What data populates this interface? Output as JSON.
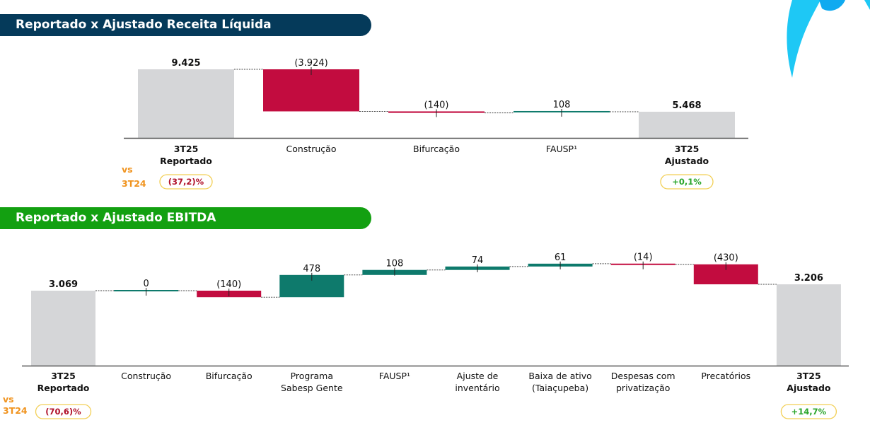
{
  "colors": {
    "navy": "#053a5a",
    "green_banner": "#13a011",
    "total": "#d5d6d8",
    "negative": "#c20c3f",
    "positive": "#0e7a6c",
    "vs_orange": "#f0931e",
    "badge_border": "#f2cf55",
    "badge_negative_text": "#b0112a",
    "badge_positive_text": "#2aa52a"
  },
  "chart_data": [
    {
      "type": "waterfall",
      "title": "Reportado x Ajustado Receita Líquida",
      "ylim": [
        3025,
        9425
      ],
      "categories": [
        {
          "lines": [
            "3T25",
            "Reportado"
          ],
          "bold": true
        },
        {
          "lines": [
            "Construção"
          ],
          "bold": false
        },
        {
          "lines": [
            "Bifurcação"
          ],
          "bold": false
        },
        {
          "lines": [
            "FAUSP¹"
          ],
          "bold": false
        },
        {
          "lines": [
            "3T25",
            "Ajustado"
          ],
          "bold": true
        }
      ],
      "values": [
        9425,
        -3924,
        -140,
        108,
        5468
      ],
      "kinds": [
        "total",
        "delta",
        "delta",
        "delta",
        "total"
      ],
      "labels": [
        "9.425",
        "(3.924)",
        "(140)",
        "108",
        "5.468"
      ],
      "vs_label": [
        "vs",
        "3T24"
      ],
      "badges": [
        {
          "index": 0,
          "text": "(37,2)%",
          "sign": "negative"
        },
        {
          "index": 4,
          "text": "+0,1%",
          "sign": "positive"
        }
      ]
    },
    {
      "type": "waterfall",
      "title": "Reportado x Ajustado EBITDA",
      "ylim": [
        1456,
        3620
      ],
      "categories": [
        {
          "lines": [
            "3T25",
            "Reportado"
          ],
          "bold": true
        },
        {
          "lines": [
            "Construção"
          ],
          "bold": false
        },
        {
          "lines": [
            "Bifurcação"
          ],
          "bold": false
        },
        {
          "lines": [
            "Programa",
            "Sabesp Gente"
          ],
          "bold": false
        },
        {
          "lines": [
            "FAUSP¹"
          ],
          "bold": false
        },
        {
          "lines": [
            "Ajuste de",
            "inventário"
          ],
          "bold": false
        },
        {
          "lines": [
            "Baixa de ativo",
            "(Taiaçupeba)"
          ],
          "bold": false
        },
        {
          "lines": [
            "Despesas com",
            "privatização"
          ],
          "bold": false
        },
        {
          "lines": [
            "Precatórios"
          ],
          "bold": false
        },
        {
          "lines": [
            "3T25",
            "Ajustado"
          ],
          "bold": true
        }
      ],
      "values": [
        3069,
        0,
        -140,
        478,
        108,
        74,
        61,
        -14,
        -430,
        3206
      ],
      "kinds": [
        "total",
        "delta",
        "delta",
        "delta",
        "delta",
        "delta",
        "delta",
        "delta",
        "delta",
        "total"
      ],
      "labels": [
        "3.069",
        "0",
        "(140)",
        "478",
        "108",
        "74",
        "61",
        "(14)",
        "(430)",
        "3.206"
      ],
      "vs_label": [
        "vs",
        "3T24"
      ],
      "badges": [
        {
          "index": 0,
          "text": "(70,6)%",
          "sign": "negative"
        },
        {
          "index": 9,
          "text": "+14,7%",
          "sign": "positive"
        }
      ]
    }
  ]
}
